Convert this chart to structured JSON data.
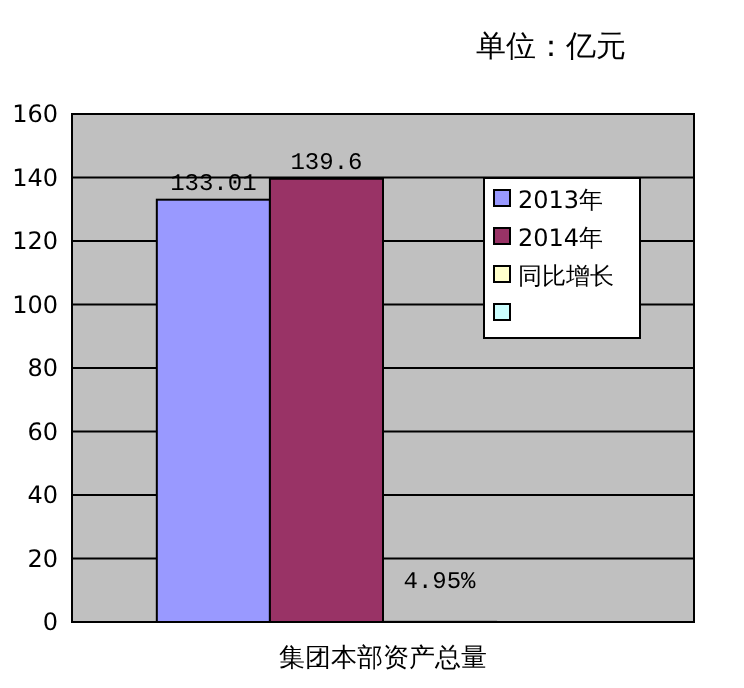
{
  "chart_data": {
    "type": "bar",
    "categories": [
      "集团本部资产总量"
    ],
    "series": [
      {
        "name": "2013年",
        "color": "#9999ff",
        "values": [
          133.01
        ],
        "value_labels": [
          "133.01"
        ]
      },
      {
        "name": "2014年",
        "color": "#993366",
        "values": [
          139.6
        ],
        "value_labels": [
          "139.6"
        ]
      },
      {
        "name": "同比增长",
        "color": "#ffffcc",
        "values": [
          0.0495
        ],
        "value_labels": [
          "4.95%"
        ]
      },
      {
        "color": "#ccffff",
        "values": [
          null
        ]
      }
    ],
    "ylim": [
      0,
      160
    ],
    "yticks": [
      0,
      20,
      40,
      60,
      80,
      100,
      120,
      140,
      160
    ],
    "grid": "y",
    "legend": "top right",
    "annotations": [
      "单位：亿元"
    ]
  }
}
